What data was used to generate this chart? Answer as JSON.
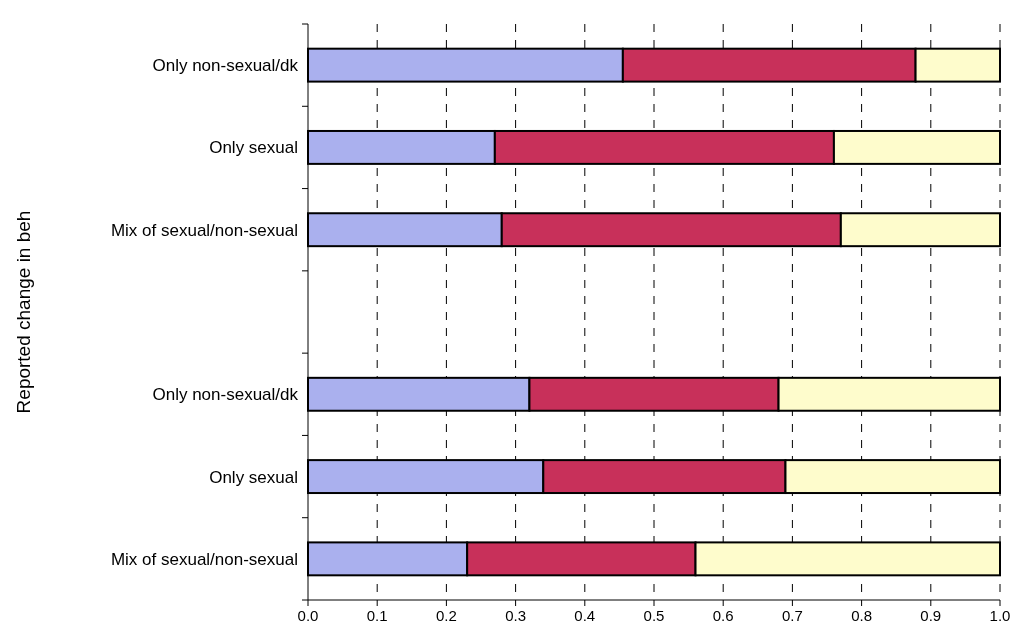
{
  "chart_data": {
    "type": "bar",
    "orientation": "horizontal",
    "stacked": true,
    "ylabel": "Reported change in beh",
    "categories": [
      "Only non-sexual/dk",
      "Only sexual",
      "Mix of sexual/non-sexual",
      null,
      "Only non-sexual/dk",
      "Only sexual",
      "Mix of sexual/non-sexual"
    ],
    "series": [
      {
        "color": "#aab0ee",
        "values": [
          0.455,
          0.27,
          0.28,
          null,
          0.32,
          0.34,
          0.23
        ]
      },
      {
        "color": "#c8305a",
        "values": [
          0.423,
          0.49,
          0.49,
          null,
          0.36,
          0.35,
          0.33
        ]
      },
      {
        "color": "#fefccc",
        "values": [
          0.122,
          0.24,
          0.23,
          null,
          0.32,
          0.31,
          0.44
        ]
      }
    ],
    "xlim": [
      0,
      1
    ],
    "xticks": [
      {
        "value": 0,
        "label": "0.0"
      },
      0.1,
      0.2,
      0.3,
      0.4,
      0.5,
      0.6,
      0.7,
      0.8,
      0.9,
      {
        "value": 1,
        "label": "1.0"
      }
    ],
    "grid": "x"
  }
}
